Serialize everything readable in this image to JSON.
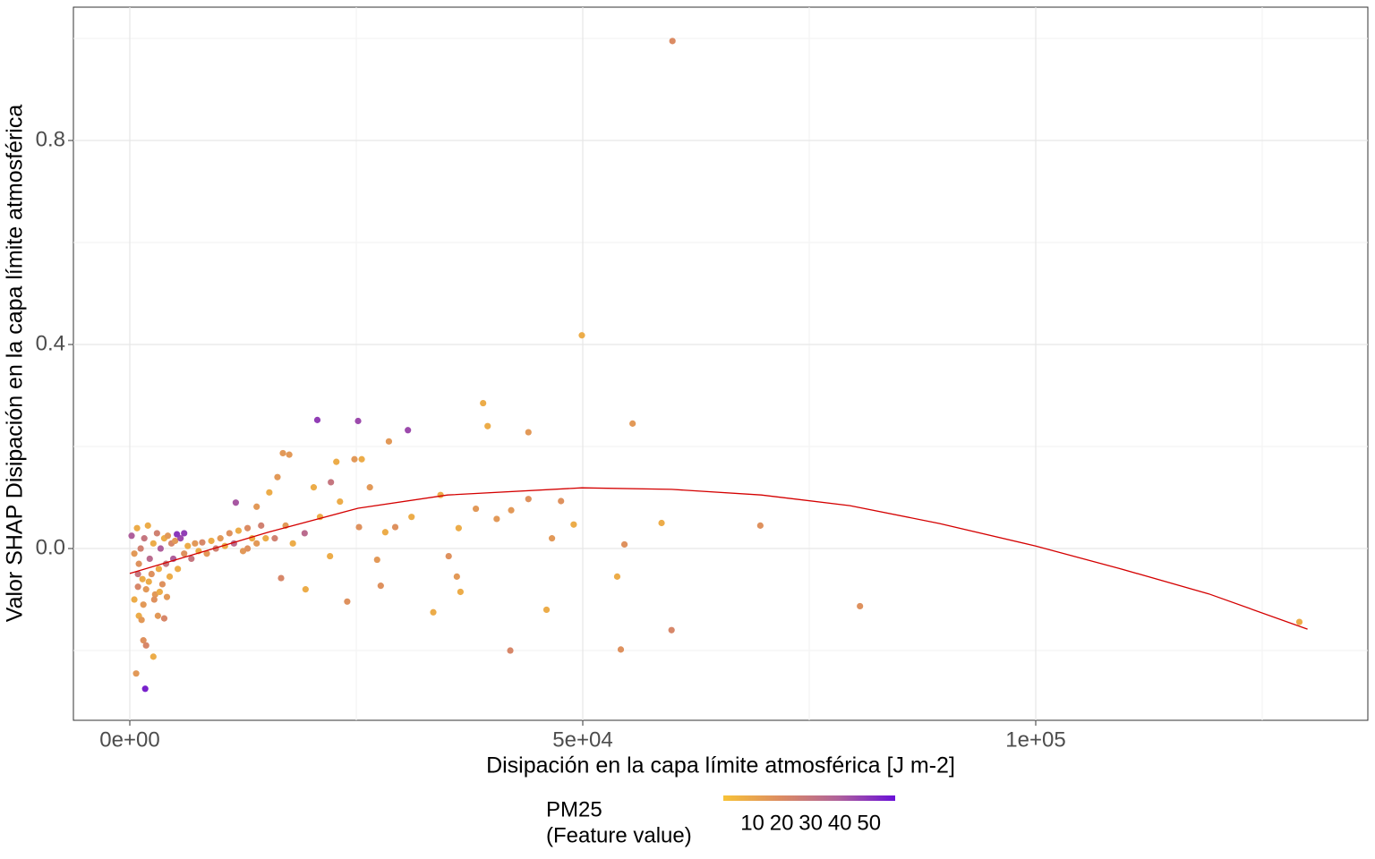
{
  "chart_data": {
    "type": "scatter",
    "x_label": "Disipación en la capa límite atmosférica [J m-2]",
    "y_label": "Valor SHAP Disipación en la capa límite atmosférica",
    "xlim": [
      -6225,
      136660
    ],
    "ylim": [
      -0.3368,
      1.0614
    ],
    "xticks": [
      {
        "value": 0,
        "label": "0e+00"
      },
      {
        "value": 50000,
        "label": "5e+04"
      },
      {
        "value": 100000,
        "label": "1e+05"
      }
    ],
    "yticks": [
      {
        "value": 0,
        "label": "0.0"
      },
      0.4,
      0.8
    ],
    "xminor": [
      25000,
      75000,
      125000
    ],
    "yminor": [
      -0.2,
      0.2,
      0.6,
      1.0
    ],
    "grid": true,
    "legend_position": "bottom",
    "legend_title": [
      "PM25",
      "(Feature value)"
    ],
    "colorlim": [
      0,
      59
    ],
    "colorticks": [
      10,
      20,
      30,
      40,
      50
    ],
    "colors": [
      "#f7c238",
      "#dc8c62",
      "#b0629a",
      "#6a10d8"
    ],
    "series": [
      {
        "x": [
          59900,
          49900,
          39000,
          39500,
          55500,
          44000,
          30700,
          25200,
          20700,
          28600,
          25600,
          24800,
          22800,
          16900,
          17600,
          69600,
          80600,
          129100,
          58700,
          54600,
          53800,
          46600,
          46000,
          54200,
          59800,
          42000,
          33500,
          36500,
          36100,
          35200,
          42100,
          44000,
          47600,
          49000,
          40500,
          38200,
          36300,
          34300,
          31100,
          29300,
          28200,
          27300,
          27700,
          24000,
          19400,
          16700,
          22100,
          26500,
          22200,
          20300,
          15400,
          14000,
          11700,
          16300,
          21000,
          23200,
          25300,
          17200,
          19300,
          700,
          1700,
          1500,
          1800,
          2600,
          1000,
          1300,
          3100,
          3800,
          200,
          500,
          800,
          1000,
          1200,
          1400,
          1600,
          1800,
          2000,
          2200,
          2400,
          2600,
          2800,
          3000,
          3200,
          3400,
          3600,
          3800,
          4000,
          4200,
          4400,
          4600,
          4800,
          5000,
          5300,
          5600,
          6000,
          6400,
          6800,
          7200,
          7600,
          8000,
          8500,
          9000,
          9500,
          10000,
          10500,
          11000,
          11500,
          12000,
          12500,
          13000,
          13500,
          14000,
          14500,
          15000,
          500,
          900,
          1500,
          2100,
          2700,
          3300,
          4100,
          900,
          6000,
          5200,
          16000,
          18000,
          13000
        ],
        "values": [
          0.995,
          0.418,
          0.285,
          0.24,
          0.245,
          0.228,
          0.232,
          0.25,
          0.252,
          0.21,
          0.175,
          0.175,
          0.17,
          0.187,
          0.184,
          0.045,
          -0.113,
          -0.144,
          0.05,
          0.008,
          -0.055,
          0.02,
          -0.12,
          -0.198,
          -0.16,
          -0.2,
          -0.125,
          -0.085,
          -0.055,
          -0.015,
          0.075,
          0.097,
          0.093,
          0.047,
          0.058,
          0.078,
          0.04,
          0.105,
          0.062,
          0.042,
          0.032,
          -0.022,
          -0.073,
          -0.104,
          -0.08,
          -0.058,
          -0.015,
          0.12,
          0.13,
          0.12,
          0.11,
          0.082,
          0.09,
          0.14,
          0.062,
          0.092,
          0.042,
          0.045,
          0.03,
          -0.245,
          -0.275,
          -0.18,
          -0.19,
          -0.212,
          -0.132,
          -0.14,
          -0.132,
          -0.137,
          0.025,
          -0.01,
          0.04,
          -0.03,
          0.0,
          -0.06,
          0.02,
          -0.08,
          0.045,
          -0.02,
          -0.05,
          0.01,
          -0.09,
          0.03,
          -0.04,
          0.0,
          -0.07,
          0.02,
          -0.03,
          0.025,
          -0.055,
          0.01,
          -0.02,
          0.015,
          -0.04,
          0.02,
          -0.01,
          0.005,
          -0.02,
          0.01,
          -0.005,
          0.012,
          -0.01,
          0.015,
          0.0,
          0.02,
          0.005,
          0.03,
          0.01,
          0.035,
          -0.005,
          0.04,
          0.02,
          0.01,
          0.045,
          0.02,
          -0.1,
          -0.075,
          -0.11,
          -0.065,
          -0.1,
          -0.085,
          -0.095,
          -0.05,
          0.03,
          0.028,
          0.02,
          0.01,
          0.0
        ],
        "pm25": [
          20,
          8,
          8,
          8,
          15,
          15,
          45,
          45,
          48,
          15,
          8,
          15,
          8,
          15,
          15,
          18,
          18,
          8,
          8,
          18,
          8,
          15,
          8,
          18,
          22,
          22,
          8,
          8,
          15,
          18,
          15,
          18,
          18,
          8,
          15,
          15,
          8,
          8,
          8,
          18,
          8,
          15,
          18,
          18,
          8,
          22,
          8,
          15,
          30,
          8,
          8,
          15,
          42,
          15,
          8,
          8,
          18,
          15,
          35,
          15,
          55,
          18,
          22,
          8,
          8,
          15,
          15,
          22,
          40,
          15,
          8,
          18,
          25,
          8,
          30,
          15,
          8,
          35,
          18,
          8,
          15,
          25,
          8,
          40,
          18,
          8,
          30,
          15,
          8,
          22,
          40,
          15,
          8,
          45,
          18,
          8,
          30,
          15,
          8,
          22,
          15,
          8,
          25,
          15,
          8,
          18,
          35,
          8,
          15,
          20,
          8,
          15,
          25,
          8,
          8,
          22,
          15,
          8,
          18,
          8,
          15,
          30,
          48,
          50,
          25,
          8,
          18
        ]
      }
    ],
    "trend": {
      "color": "#d40000",
      "x": [
        0,
        15300,
        25200,
        35080,
        49900,
        59800,
        69700,
        79500,
        89400,
        100000,
        109200,
        119100,
        130000
      ],
      "values": [
        -0.049,
        0.032,
        0.079,
        0.105,
        0.119,
        0.116,
        0.105,
        0.084,
        0.049,
        0.005,
        -0.039,
        -0.089,
        -0.158
      ]
    }
  }
}
